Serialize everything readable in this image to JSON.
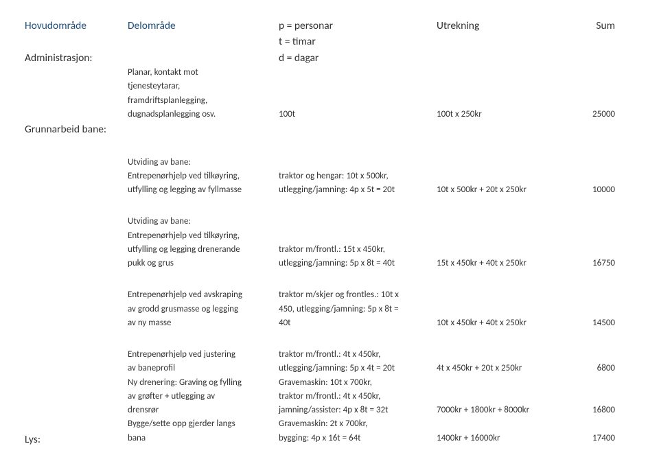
{
  "headers": {
    "hovud": "Hovudområde",
    "del": "Delområde",
    "p": "p = personar",
    "t": "t = timar",
    "d": "d = dagar",
    "utrekning": "Utrekning",
    "sum": "Sum"
  },
  "admin": {
    "title": "Administrasjon:",
    "desc_l1": "Planar, kontakt mot",
    "desc_l2": "tjenesteytarar,",
    "desc_l3": "framdriftsplanlegging,",
    "desc_l4": "dugnadsplanlegging osv.",
    "mid": "100t",
    "calc": "100t x 250kr",
    "sum": "25000"
  },
  "grunn": {
    "title": "Grunnarbeid bane:",
    "b1": {
      "l1": "Utviding av bane:",
      "l2": "Entrepenørhjelp ved tilkøyring,",
      "l3": "utfylling og legging av fyllmasse",
      "m1": "traktor og hengar: 10t x 500kr,",
      "m2": "utlegging/jamning: 4p x 5t = 20t",
      "calc": "10t x 500kr + 20t x 250kr",
      "sum": "10000"
    },
    "b2": {
      "l1": "Utviding av bane:",
      "l2": "Entrepenørhjelp ved tilkøyring,",
      "l3": "utfylling og legging drenerande",
      "l4": "pukk og grus",
      "m1": "traktor m/frontl.: 15t x 450kr,",
      "m2": "utlegging/jamning: 5p x 8t = 40t",
      "calc": "15t x 450kr + 40t x 250kr",
      "sum": "16750"
    },
    "b3": {
      "l1": "Entrepenørhjelp ved avskraping",
      "l2": "av grodd grusmasse og legging",
      "l3": "av ny masse",
      "m1": "traktor m/skjer og frontles.: 10t x",
      "m2": "450, utlegging/jamning: 5p x 8t =",
      "m3": "40t",
      "calc": "10t x 450kr + 40t x 250kr",
      "sum": "14500"
    },
    "b4": {
      "l1": "Entrepenørhjelp ved justering",
      "l2": "av baneprofil",
      "l3": "Ny drenering: Graving og fylling",
      "l4": "av grøfter + utlegging av",
      "l5": "drensrør",
      "l6": "Bygge/sette opp gjerder langs",
      "l7": "bana",
      "m1": "traktor m/frontl.: 4t x 450kr,",
      "m2": "utlegging/jamning: 5p x 4t = 20t",
      "m3": "Gravemaskin: 10t x 700kr,",
      "m4": "traktor m/frontl.: 4t x 450kr,",
      "m5": "jamning/assister: 4p x 8t = 32t",
      "m6": "Gravemaskin: 2t x 700kr,",
      "m7": "bygging: 4p x 16t = 64t",
      "calc1": "4t x 450kr + 20t x 250kr",
      "sum1": "6800",
      "calc2": "7000kr + 1800kr + 8000kr",
      "sum2": "16800",
      "calc3": "1400kr + 16000kr",
      "sum3": "17400"
    }
  },
  "lys": {
    "title": "Lys:"
  }
}
